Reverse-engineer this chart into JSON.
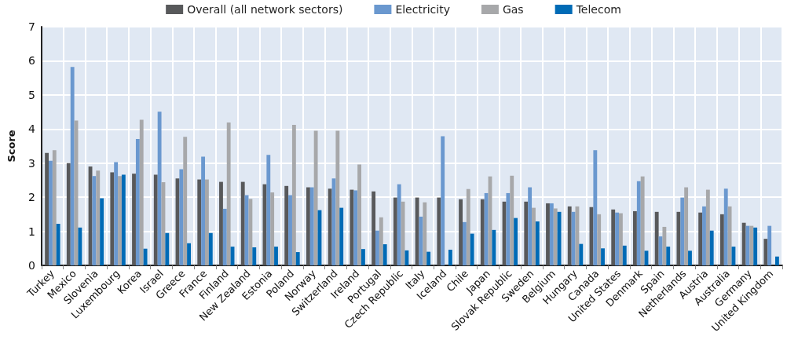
{
  "chart_data": {
    "type": "bar",
    "ylabel": "Score",
    "categories": [
      "Turkey",
      "Mexico",
      "Slovenia",
      "Luxembourg",
      "Korea",
      "Israel",
      "Greece",
      "France",
      "Finland",
      "New Zealand",
      "Estonia",
      "Poland",
      "Norway",
      "Switzerland",
      "Ireland",
      "Portugal",
      "Czech Republic",
      "Italy",
      "Iceland",
      "Chile",
      "Japan",
      "Slovak Republic",
      "Sweden",
      "Belgium",
      "Hungary",
      "Canada",
      "United States",
      "Denmark",
      "Spain",
      "Netherlands",
      "Austria",
      "Australia",
      "Germany",
      "United Kingdom"
    ],
    "series": [
      {
        "name": "Overall (all network sectors)",
        "color": "#58595b",
        "values": [
          3.3,
          3.0,
          2.9,
          2.73,
          2.69,
          2.66,
          2.55,
          2.52,
          2.45,
          2.45,
          2.38,
          2.33,
          2.29,
          2.25,
          2.22,
          2.17,
          1.99,
          1.99,
          1.99,
          1.94,
          1.94,
          1.87,
          1.87,
          1.82,
          1.73,
          1.71,
          1.64,
          1.59,
          1.57,
          1.57,
          1.55,
          1.5,
          1.25,
          0.78
        ]
      },
      {
        "name": "Electricity",
        "color": "#6a98cf",
        "values": [
          3.07,
          5.82,
          2.62,
          3.03,
          3.71,
          4.51,
          2.82,
          3.19,
          1.66,
          2.06,
          3.24,
          2.06,
          2.29,
          2.55,
          2.2,
          1.02,
          2.38,
          1.43,
          3.79,
          1.27,
          2.12,
          2.12,
          2.29,
          1.82,
          1.57,
          3.38,
          1.55,
          2.47,
          0.85,
          1.99,
          1.73,
          2.25,
          1.16,
          1.16
        ]
      },
      {
        "name": "Gas",
        "color": "#a7a8aa",
        "values": [
          3.38,
          4.25,
          2.78,
          2.62,
          4.27,
          2.44,
          3.77,
          2.52,
          4.19,
          1.95,
          2.14,
          4.12,
          3.95,
          3.95,
          2.96,
          1.41,
          1.87,
          1.85,
          null,
          2.24,
          2.61,
          2.63,
          1.69,
          1.67,
          1.73,
          1.5,
          1.53,
          2.61,
          1.13,
          2.29,
          2.22,
          1.73,
          1.16,
          null
        ]
      },
      {
        "name": "Telecom",
        "color": "#006bb6",
        "values": [
          1.22,
          1.11,
          1.97,
          2.66,
          0.49,
          0.95,
          0.65,
          0.95,
          0.55,
          0.53,
          0.55,
          0.39,
          1.62,
          1.69,
          0.48,
          0.62,
          0.44,
          0.4,
          0.46,
          0.93,
          1.04,
          1.39,
          1.29,
          1.57,
          0.63,
          0.5,
          0.58,
          0.43,
          0.55,
          0.43,
          1.02,
          0.55,
          1.11,
          0.26
        ]
      }
    ],
    "ylim": [
      0,
      7
    ],
    "yticks": [
      0,
      1,
      2,
      3,
      4,
      5,
      6,
      7
    ],
    "grid": true,
    "legend": "top"
  }
}
